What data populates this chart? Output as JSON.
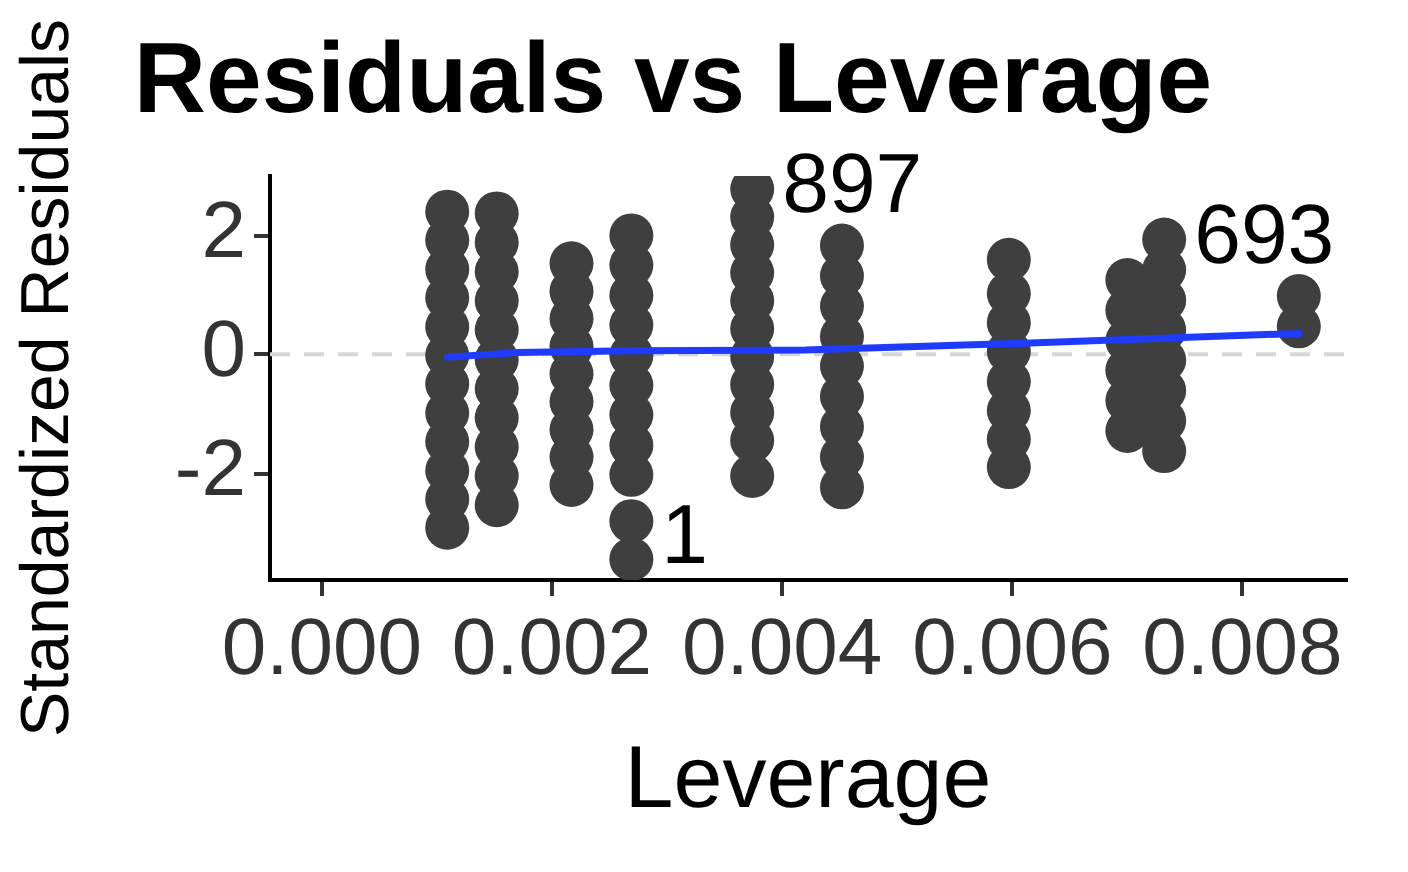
{
  "chart_data": {
    "type": "scatter",
    "title": "Residuals vs Leverage",
    "xlabel": "Leverage",
    "ylabel": "Standardized Residuals",
    "xlim": [
      -0.00045,
      0.0089
    ],
    "ylim": [
      -3.8,
      3.0
    ],
    "xticks": [
      {
        "value": 0,
        "label": "0.000"
      },
      0.002,
      0.004,
      0.006,
      0.008
    ],
    "yticks": [
      -2,
      0,
      2
    ],
    "marker": "circle",
    "series": [
      {
        "type": "scatter",
        "color": "#3f3f3f",
        "x": [
          0.00109,
          0.00109,
          0.00109,
          0.00109,
          0.00109,
          0.00109,
          0.00109,
          0.00109,
          0.00109,
          0.00109,
          0.00109,
          0.00109,
          0.00152,
          0.00152,
          0.00152,
          0.00152,
          0.00152,
          0.00152,
          0.00152,
          0.00152,
          0.00152,
          0.00152,
          0.00152,
          0.00217,
          0.00217,
          0.00217,
          0.00217,
          0.00217,
          0.00217,
          0.00217,
          0.00217,
          0.00217,
          0.00269,
          0.00269,
          0.00269,
          0.00269,
          0.00269,
          0.00269,
          0.00269,
          0.00269,
          0.00269,
          0.00269,
          0.00269,
          0.00374,
          0.00374,
          0.00374,
          0.00374,
          0.00374,
          0.00374,
          0.00374,
          0.00374,
          0.00374,
          0.00374,
          0.00374,
          0.00452,
          0.00452,
          0.00452,
          0.00452,
          0.00452,
          0.00452,
          0.00452,
          0.00452,
          0.00452,
          0.00597,
          0.00597,
          0.00597,
          0.00597,
          0.00597,
          0.00597,
          0.00597,
          0.00597,
          0.007,
          0.007,
          0.007,
          0.007,
          0.007,
          0.007,
          0.00732,
          0.00732,
          0.00732,
          0.00732,
          0.00732,
          0.00732,
          0.00732,
          0.00732,
          0.00849,
          0.00849
        ],
        "values": [
          2.4,
          1.92,
          1.43,
          0.95,
          0.46,
          -0.02,
          -0.5,
          -0.99,
          -1.47,
          -1.96,
          -2.44,
          -2.92,
          2.37,
          1.88,
          1.39,
          0.9,
          0.41,
          -0.09,
          -0.58,
          -1.07,
          -1.56,
          -2.05,
          -2.54,
          1.53,
          1.06,
          0.6,
          0.13,
          -0.33,
          -0.8,
          -1.27,
          -1.73,
          -2.2,
          2.0,
          1.5,
          0.99,
          0.49,
          -0.02,
          -0.52,
          -1.02,
          -1.53,
          -2.03,
          -2.81,
          -3.45,
          2.78,
          2.31,
          1.84,
          1.37,
          0.9,
          0.43,
          -0.04,
          -0.51,
          -0.98,
          -1.45,
          -2.05,
          1.83,
          1.32,
          0.81,
          0.3,
          -0.2,
          -0.71,
          -1.22,
          -1.73,
          -2.24,
          1.59,
          1.02,
          0.53,
          0.05,
          -0.46,
          -0.95,
          -1.43,
          -1.9,
          1.25,
          0.74,
          0.23,
          -0.27,
          -0.78,
          -1.29,
          1.93,
          1.42,
          0.91,
          0.41,
          -0.1,
          -0.61,
          -1.12,
          -1.63,
          0.98,
          0.47
        ]
      },
      {
        "type": "line",
        "color": "#1f3bff",
        "marker": "none",
        "x": [
          0.00109,
          0.0017,
          0.0027,
          0.0042,
          0.006,
          0.0073,
          0.00849
        ],
        "values": [
          -0.05,
          0.03,
          0.06,
          0.07,
          0.18,
          0.27,
          0.35
        ]
      }
    ],
    "ref_lines": [
      {
        "axis": "y",
        "value": 0,
        "color": "#d6d6d6",
        "line_style": "dashed"
      }
    ],
    "annotations": [
      {
        "text": "897",
        "x": 0.00374,
        "y": 2.78
      },
      {
        "text": "693",
        "x": 0.00732,
        "y": 1.93
      },
      {
        "text": "1",
        "x": 0.00269,
        "y": -3.45
      }
    ]
  }
}
